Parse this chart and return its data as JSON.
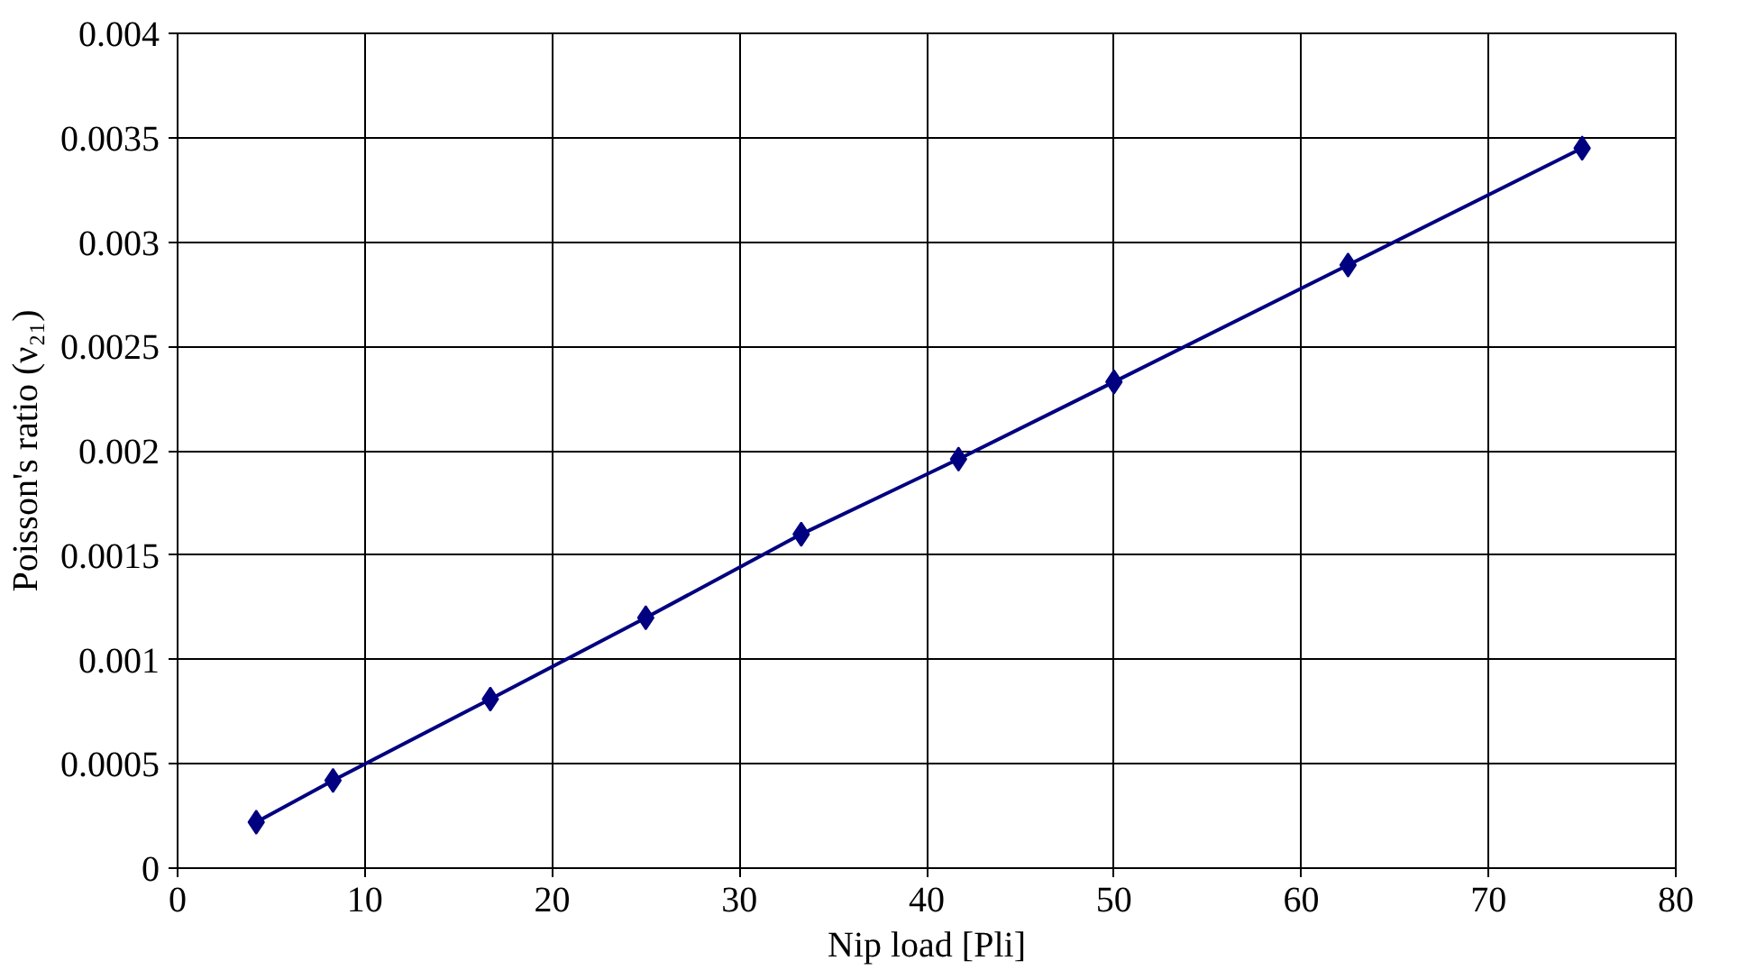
{
  "chart_data": {
    "type": "line",
    "xlabel": "Nip load [Pli]",
    "ylabel": "Poisson's ratio (ν₂₁)",
    "x": [
      4.2,
      8.3,
      16.7,
      25,
      33.3,
      41.7,
      50,
      62.5,
      75
    ],
    "series": [
      {
        "color": "#000080",
        "values": [
          0.00022,
          0.00042,
          0.00081,
          0.0012,
          0.0016,
          0.00196,
          0.00233,
          0.00289,
          0.00345
        ]
      }
    ],
    "xlim": [
      0,
      80
    ],
    "xticks": [
      0,
      10,
      20,
      30,
      40,
      50,
      60,
      70,
      80
    ],
    "ylim": [
      0,
      0.004
    ],
    "yticks": [
      0,
      0.0005,
      0.001,
      0.0015,
      0.002,
      0.0025,
      0.003,
      0.0035,
      0.004
    ],
    "grid": true,
    "marker": "diamond",
    "line_style": "solid"
  }
}
